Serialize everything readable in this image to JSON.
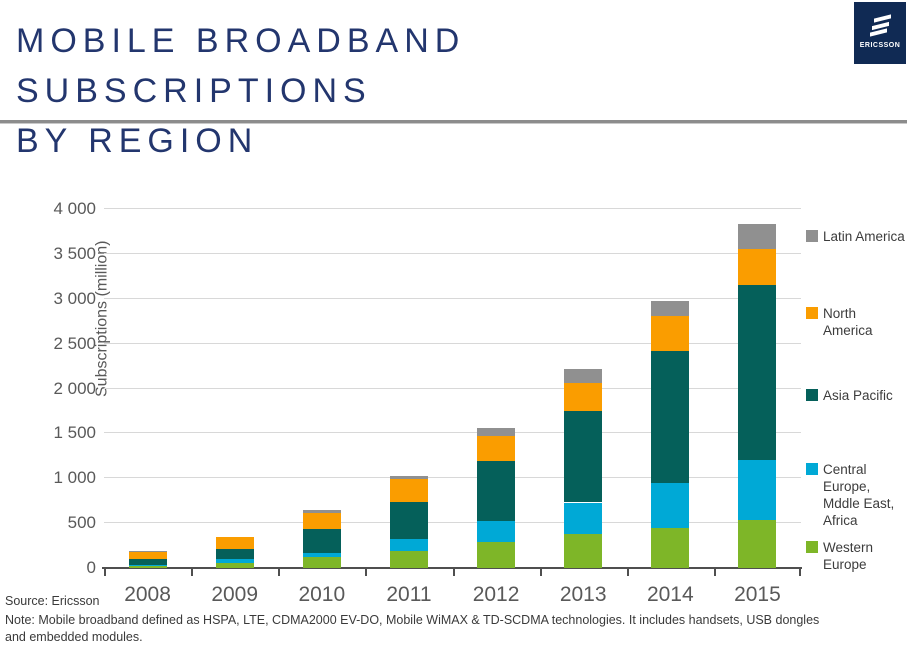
{
  "header": {
    "title_line1": "MOBILE BROADBAND SUBSCRIPTIONS",
    "title_line2": "BY REGION",
    "logo_text": "ERICSSON"
  },
  "chart_data": {
    "type": "bar",
    "stacked": true,
    "title": "Mobile broadband subscriptions by region",
    "categories": [
      "2008",
      "2009",
      "2010",
      "2011",
      "2012",
      "2013",
      "2014",
      "2015"
    ],
    "series": [
      {
        "name": "Western Europe",
        "color": "#7eb628",
        "values": [
          25,
          55,
          120,
          190,
          285,
          380,
          445,
          530
        ]
      },
      {
        "name": "Central Europe, Mddle East, Africa",
        "color": "#00a9d6",
        "values": [
          10,
          50,
          50,
          130,
          235,
          350,
          505,
          675
        ]
      },
      {
        "name": "Asia Pacific",
        "color": "#05605a",
        "values": [
          70,
          110,
          260,
          420,
          670,
          1025,
          1470,
          1945
        ]
      },
      {
        "name": "North America",
        "color": "#fa9d00",
        "values": [
          85,
          135,
          185,
          250,
          280,
          310,
          390,
          400
        ]
      },
      {
        "name": "Latin America",
        "color": "#909090",
        "values": [
          5,
          0,
          30,
          40,
          90,
          150,
          165,
          280
        ]
      }
    ],
    "totals": [
      195,
      350,
      645,
      1030,
      1560,
      2215,
      2975,
      3830
    ],
    "xlabel": "",
    "ylabel": "Subscriptions (million)",
    "ylim": [
      0,
      4000
    ],
    "ytick_step": 500,
    "ytick_labels": [
      "0",
      "500",
      "1 000",
      "1 500",
      "2 000",
      "2 500",
      "3 000",
      "3 500",
      "4 000"
    ],
    "grid": true,
    "legend_position": "right",
    "legend_order_top_to_bottom": [
      "Latin America",
      "North America",
      "Asia Pacific",
      "Central Europe, Mddle East, Africa",
      "Western Europe"
    ]
  },
  "footer": {
    "source": "Source: Ericsson",
    "note": "Note: Mobile broadband defined as HSPA, LTE, CDMA2000 EV-DO, Mobile WiMAX & TD-SCDMA technologies. It includes handsets, USB dongles and embedded modules."
  }
}
